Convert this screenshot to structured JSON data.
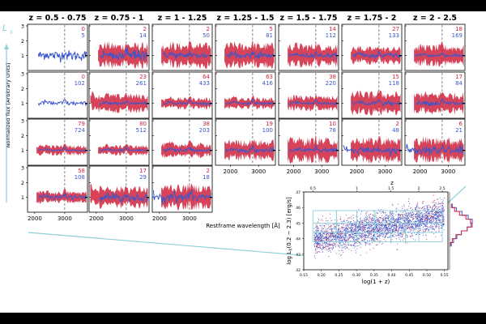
{
  "chart_data": [
    {
      "type": "line",
      "name": "spectra_grid",
      "ylabel": "Normalized flux [Arbitrary units]",
      "xlabel": "Restframe wavelength [Å]",
      "side_label": "L",
      "side_label_sub": "X",
      "columns": [
        "z = 0.5 - 0.75",
        "z = 0.75 - 1",
        "z = 1 - 1.25",
        "z = 1.25 - 1.5",
        "z = 1.5 - 1.75",
        "z = 1.75 - 2",
        "z = 2 - 2.5"
      ],
      "ytick_labels": [
        "1",
        "2",
        "3"
      ],
      "xtick_labels_wide": [
        "2000",
        "3000"
      ],
      "xtick_labels_narrow": [
        "2000",
        "3000"
      ],
      "ylim": [
        0,
        3
      ],
      "reference_line_wavelength": 2800,
      "series_colors": {
        "red": "#d0233c",
        "blue": "#3c56cc"
      },
      "cells": [
        [
          {
            "r": "0",
            "b": "5"
          },
          {
            "r": "2",
            "b": "14"
          },
          {
            "r": "2",
            "b": "50"
          },
          {
            "r": "5",
            "b": "81"
          },
          {
            "r": "14",
            "b": "112"
          },
          {
            "r": "27",
            "b": "133"
          },
          {
            "r": "18",
            "b": "169"
          }
        ],
        [
          {
            "r": "0",
            "b": "102"
          },
          {
            "r": "23",
            "b": "261"
          },
          {
            "r": "64",
            "b": "433"
          },
          {
            "r": "63",
            "b": "416"
          },
          {
            "r": "38",
            "b": "220"
          },
          {
            "r": "15",
            "b": "118"
          },
          {
            "r": "17",
            "b": "84"
          }
        ],
        [
          {
            "r": "79",
            "b": "724"
          },
          {
            "r": "80",
            "b": "512"
          },
          {
            "r": "38",
            "b": "203"
          },
          {
            "r": "19",
            "b": "100"
          },
          {
            "r": "10",
            "b": "78"
          },
          {
            "r": "2",
            "b": "48"
          },
          {
            "r": "6",
            "b": "21"
          }
        ],
        [
          {
            "r": "58",
            "b": "108"
          },
          {
            "r": "17",
            "b": "29"
          },
          {
            "r": "2",
            "b": "18"
          }
        ]
      ]
    },
    {
      "type": "scatter",
      "name": "lx_vs_z",
      "xlabel": "log(1 + z)",
      "ylabel": "log L",
      "ylabel_sub": "X",
      "ylabel_rest": "(0.2 − 2.3) [erg/s]",
      "top_axis_label": "z",
      "xlim": [
        0.15,
        0.56
      ],
      "ylim": [
        42,
        47
      ],
      "xtick_labels": [
        "0.15",
        "0.20",
        "0.25",
        "0.30",
        "0.35",
        "0.40",
        "0.45",
        "0.50",
        "0.55"
      ],
      "ytick_labels": [
        "42",
        "43",
        "44",
        "45",
        "46",
        "47"
      ],
      "top_tick_labels": [
        "0.5",
        "1",
        "1.5",
        "2",
        "2.5"
      ],
      "top_tick_values": [
        0.5,
        1,
        1.5,
        2,
        2.5
      ],
      "bin_edges_z": [
        0.5,
        0.75,
        1,
        1.25,
        1.5,
        1.75,
        2,
        2.5
      ],
      "bin_edges_lx": [
        43.8,
        44.4,
        45.0,
        45.8
      ],
      "trend": {
        "x": [
          0.18,
          0.55
        ],
        "y": [
          43.9,
          45.5
        ],
        "scatter": 0.45
      },
      "series": [
        {
          "color": "#3c56cc",
          "n": 2600
        },
        {
          "color": "#d0233c",
          "n": 500
        }
      ],
      "histogram_lx_bins": [
        43.5,
        43.75,
        44.0,
        44.25,
        44.5,
        44.75,
        45.0,
        45.25,
        45.5,
        45.75,
        46.0,
        46.25
      ],
      "histogram_blue": [
        0.08,
        0.18,
        0.32,
        0.52,
        0.78,
        0.95,
        1.0,
        0.82,
        0.55,
        0.3,
        0.12,
        0.04
      ],
      "histogram_red": [
        0.04,
        0.12,
        0.28,
        0.52,
        0.78,
        1.0,
        0.92,
        0.72,
        0.44,
        0.22,
        0.08,
        0.02
      ]
    }
  ]
}
